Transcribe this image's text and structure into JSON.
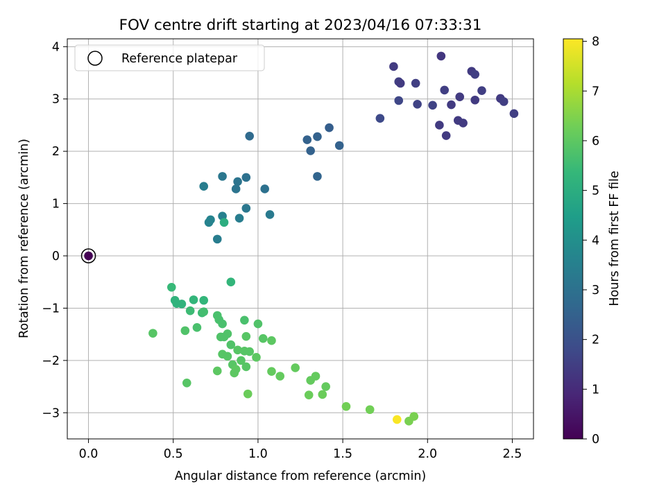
{
  "chart_data": {
    "type": "scatter",
    "title": "FOV centre drift starting at 2023/04/16 07:33:31",
    "xlabel": "Angular distance from reference (arcmin)",
    "ylabel": "Rotation from reference (arcmin)",
    "xlim": [
      -0.125,
      2.625
    ],
    "ylim": [
      -3.5,
      4.15
    ],
    "xticks": [
      0.0,
      0.5,
      1.0,
      1.5,
      2.0,
      2.5
    ],
    "xtick_labels": [
      "0.0",
      "0.5",
      "1.0",
      "1.5",
      "2.0",
      "2.5"
    ],
    "yticks": [
      -3,
      -2,
      -1,
      0,
      1,
      2,
      3,
      4
    ],
    "ytick_labels": [
      "−3",
      "−2",
      "−1",
      "0",
      "1",
      "2",
      "3",
      "4"
    ],
    "grid": true,
    "legend": {
      "placement": "top-left",
      "entries": [
        "Reference platepar"
      ]
    },
    "colorbar": {
      "label": "Hours from first FF file",
      "range": [
        0,
        8.05
      ],
      "ticks": [
        0,
        1,
        2,
        3,
        4,
        5,
        6,
        7,
        8
      ],
      "tick_labels": [
        "0",
        "1",
        "2",
        "3",
        "4",
        "5",
        "6",
        "7",
        "8"
      ],
      "colormap": "viridis",
      "stops": [
        "#440154",
        "#482777",
        "#3e4a89",
        "#31688e",
        "#26828e",
        "#1f9e89",
        "#35b779",
        "#6ece58",
        "#b5de2b",
        "#fde725"
      ]
    },
    "reference": {
      "x": 0.0,
      "y": 0.0
    },
    "series": [
      {
        "group": "hours 0-2",
        "x": [
          0.0,
          1.8,
          2.08,
          1.83,
          1.84,
          1.93,
          2.26,
          2.28,
          1.72,
          1.83,
          1.94,
          2.03,
          2.1,
          2.14,
          2.19,
          2.28,
          2.32,
          2.43,
          2.45,
          2.51,
          2.07,
          2.11,
          2.18,
          2.21
        ],
        "y": [
          0.0,
          3.62,
          3.82,
          3.33,
          3.3,
          3.3,
          3.53,
          3.47,
          2.63,
          2.97,
          2.9,
          2.88,
          3.17,
          2.89,
          3.04,
          2.98,
          3.16,
          3.01,
          2.95,
          2.72,
          2.5,
          2.3,
          2.59,
          2.54
        ],
        "hours": [
          0.0,
          1.4,
          1.3,
          1.5,
          1.4,
          1.5,
          1.4,
          1.5,
          1.8,
          1.7,
          1.6,
          1.6,
          1.5,
          1.4,
          1.4,
          1.4,
          1.5,
          1.4,
          1.5,
          1.5,
          1.4,
          1.4,
          1.4,
          1.4
        ]
      },
      {
        "group": "hours 2-4",
        "x": [
          0.95,
          1.29,
          1.35,
          1.42,
          1.31,
          1.48,
          1.35,
          0.68,
          0.79,
          0.88,
          0.93,
          0.87,
          1.04,
          0.93,
          0.72,
          0.71,
          0.79,
          0.89,
          1.07,
          0.76
        ],
        "y": [
          2.29,
          2.22,
          2.28,
          2.45,
          2.01,
          2.11,
          1.52,
          1.33,
          1.52,
          1.42,
          1.5,
          1.28,
          1.28,
          0.91,
          0.69,
          0.64,
          0.76,
          0.72,
          0.79,
          0.32
        ],
        "hours": [
          2.8,
          2.5,
          2.5,
          2.4,
          2.5,
          2.5,
          2.6,
          3.4,
          3.2,
          3.1,
          3.0,
          3.1,
          3.0,
          3.2,
          3.6,
          3.6,
          3.5,
          3.4,
          3.3,
          3.4
        ]
      },
      {
        "group": "hours 5-8",
        "x": [
          0.8,
          0.84,
          0.49,
          0.51,
          0.52,
          0.55,
          0.6,
          0.62,
          0.68,
          0.67,
          0.68,
          0.76,
          0.79,
          0.92,
          1.0,
          0.38,
          0.57,
          0.64,
          0.77,
          0.82,
          0.8,
          0.78,
          0.93,
          1.03,
          1.08,
          0.84,
          0.88,
          0.92,
          0.95,
          0.9,
          0.79,
          0.82,
          0.85,
          0.99,
          0.93,
          0.86,
          0.76,
          0.87,
          0.58,
          0.94,
          1.08,
          1.13,
          1.22,
          1.34,
          1.31,
          1.4,
          1.3,
          1.38,
          1.52,
          1.66,
          1.92,
          1.89,
          1.82
        ],
        "y": [
          0.64,
          -0.5,
          -0.6,
          -0.85,
          -0.91,
          -0.92,
          -1.05,
          -0.84,
          -0.85,
          -1.09,
          -1.07,
          -1.14,
          -1.3,
          -1.23,
          -1.3,
          -1.48,
          -1.43,
          -1.37,
          -1.22,
          -1.49,
          -1.55,
          -1.55,
          -1.54,
          -1.58,
          -1.62,
          -1.7,
          -1.8,
          -1.82,
          -1.83,
          -2.0,
          -1.88,
          -1.92,
          -2.08,
          -1.94,
          -2.12,
          -2.24,
          -2.2,
          -2.17,
          -2.43,
          -2.64,
          -2.21,
          -2.3,
          -2.14,
          -2.3,
          -2.38,
          -2.5,
          -2.66,
          -2.65,
          -2.88,
          -2.94,
          -3.07,
          -3.16,
          -3.13
        ],
        "hours": [
          5.0,
          5.3,
          5.4,
          5.2,
          5.2,
          5.2,
          5.5,
          5.3,
          5.3,
          5.5,
          5.6,
          5.7,
          5.7,
          5.7,
          5.8,
          5.9,
          5.8,
          5.7,
          5.7,
          5.8,
          5.8,
          5.8,
          5.9,
          5.9,
          6.0,
          5.8,
          5.9,
          5.9,
          5.9,
          5.9,
          5.9,
          5.9,
          5.9,
          6.0,
          5.9,
          6.0,
          6.0,
          6.0,
          5.9,
          6.2,
          6.1,
          6.1,
          6.1,
          6.1,
          6.1,
          6.1,
          6.2,
          6.2,
          6.3,
          6.3,
          6.4,
          6.4,
          8.0
        ]
      }
    ]
  }
}
